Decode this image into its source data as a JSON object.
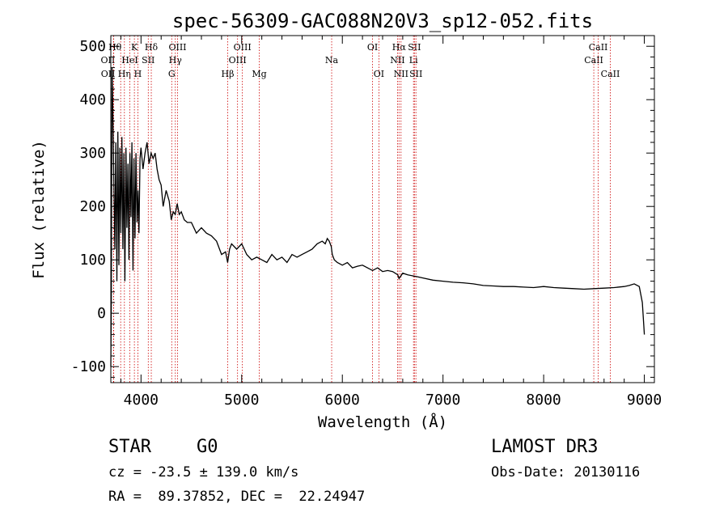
{
  "chart_data": {
    "type": "line",
    "title": "spec-56309-GAC088N20V3_sp12-052.fits",
    "xlabel": "Wavelength (Å)",
    "ylabel": "Flux (relative)",
    "xlim": [
      3700,
      9100
    ],
    "ylim": [
      -130,
      520
    ],
    "xticks": [
      4000,
      5000,
      6000,
      7000,
      8000,
      9000
    ],
    "yticks": [
      -100,
      0,
      100,
      200,
      300,
      400,
      500
    ],
    "series": [
      {
        "name": "flux",
        "x": [
          3700,
          3705,
          3712,
          3720,
          3730,
          3740,
          3750,
          3760,
          3770,
          3780,
          3790,
          3800,
          3810,
          3820,
          3830,
          3840,
          3850,
          3860,
          3870,
          3880,
          3890,
          3900,
          3910,
          3920,
          3930,
          3940,
          3950,
          3960,
          3970,
          3980,
          3990,
          4000,
          4020,
          4040,
          4060,
          4080,
          4100,
          4120,
          4140,
          4160,
          4180,
          4200,
          4220,
          4250,
          4280,
          4300,
          4320,
          4340,
          4360,
          4380,
          4400,
          4430,
          4460,
          4500,
          4550,
          4600,
          4650,
          4700,
          4750,
          4800,
          4840,
          4860,
          4880,
          4900,
          4950,
          5000,
          5050,
          5100,
          5150,
          5200,
          5250,
          5300,
          5350,
          5400,
          5450,
          5500,
          5550,
          5600,
          5650,
          5700,
          5750,
          5800,
          5830,
          5850,
          5870,
          5890,
          5900,
          5920,
          5950,
          6000,
          6050,
          6100,
          6150,
          6200,
          6250,
          6300,
          6350,
          6400,
          6450,
          6500,
          6550,
          6563,
          6600,
          6650,
          6700,
          6750,
          6800,
          6900,
          7000,
          7100,
          7200,
          7300,
          7400,
          7500,
          7600,
          7700,
          7800,
          7900,
          8000,
          8100,
          8200,
          8300,
          8400,
          8500,
          8600,
          8700,
          8800,
          8850,
          8900,
          8950,
          8980,
          9000
        ],
        "y": [
          -100,
          20,
          460,
          380,
          250,
          120,
          320,
          60,
          340,
          90,
          310,
          150,
          330,
          120,
          300,
          60,
          310,
          160,
          280,
          100,
          300,
          180,
          320,
          80,
          290,
          140,
          300,
          170,
          230,
          150,
          290,
          310,
          270,
          300,
          320,
          280,
          300,
          290,
          300,
          270,
          250,
          240,
          200,
          230,
          210,
          175,
          190,
          185,
          205,
          185,
          190,
          175,
          170,
          170,
          150,
          160,
          150,
          145,
          135,
          110,
          115,
          95,
          120,
          130,
          120,
          130,
          110,
          100,
          105,
          100,
          95,
          110,
          100,
          105,
          95,
          110,
          105,
          110,
          115,
          120,
          130,
          135,
          130,
          140,
          135,
          125,
          110,
          100,
          95,
          90,
          95,
          85,
          88,
          90,
          85,
          80,
          85,
          78,
          80,
          78,
          72,
          65,
          75,
          72,
          70,
          68,
          66,
          62,
          60,
          58,
          57,
          55,
          52,
          51,
          50,
          50,
          49,
          48,
          50,
          48,
          47,
          46,
          45,
          46,
          47,
          48,
          50,
          52,
          55,
          50,
          20,
          -40
        ]
      }
    ],
    "lines": [
      {
        "name": "OII",
        "wavelength": 3727,
        "row": 2,
        "side": "left"
      },
      {
        "name": "OII",
        "wavelength": 3729,
        "row": 3,
        "side": "left"
      },
      {
        "name": "Hθ",
        "wavelength": 3798,
        "row": 1,
        "side": "left"
      },
      {
        "name": "Hη",
        "wavelength": 3835,
        "row": 3,
        "side": "center"
      },
      {
        "name": "HeI",
        "wavelength": 3889,
        "row": 2,
        "side": "center"
      },
      {
        "name": "K",
        "wavelength": 3934,
        "row": 1,
        "side": "center"
      },
      {
        "name": "H",
        "wavelength": 3969,
        "row": 3,
        "side": "center"
      },
      {
        "name": "SII",
        "wavelength": 4072,
        "row": 2,
        "side": "center"
      },
      {
        "name": "Hδ",
        "wavelength": 4102,
        "row": 1,
        "side": "center"
      },
      {
        "name": "G",
        "wavelength": 4305,
        "row": 3,
        "side": "center"
      },
      {
        "name": "Hγ",
        "wavelength": 4341,
        "row": 2,
        "side": "center"
      },
      {
        "name": "OIII",
        "wavelength": 4363,
        "row": 1,
        "side": "center"
      },
      {
        "name": "Hβ",
        "wavelength": 4861,
        "row": 3,
        "side": "center"
      },
      {
        "name": "OIII",
        "wavelength": 4959,
        "row": 2,
        "side": "center"
      },
      {
        "name": "OIII",
        "wavelength": 5007,
        "row": 1,
        "side": "center"
      },
      {
        "name": "Mg",
        "wavelength": 5175,
        "row": 3,
        "side": "center"
      },
      {
        "name": "Na",
        "wavelength": 5894,
        "row": 2,
        "side": "center"
      },
      {
        "name": "OI",
        "wavelength": 6300,
        "row": 1,
        "side": "center"
      },
      {
        "name": "OI",
        "wavelength": 6363,
        "row": 3,
        "side": "center"
      },
      {
        "name": "NII",
        "wavelength": 6548,
        "row": 2,
        "side": "center"
      },
      {
        "name": "Hα",
        "wavelength": 6563,
        "row": 1,
        "side": "center"
      },
      {
        "name": "NII",
        "wavelength": 6583,
        "row": 3,
        "side": "center"
      },
      {
        "name": "Li",
        "wavelength": 6707,
        "row": 2,
        "side": "center"
      },
      {
        "name": "SII",
        "wavelength": 6716,
        "row": 1,
        "side": "center"
      },
      {
        "name": "SII",
        "wavelength": 6731,
        "row": 3,
        "side": "center"
      },
      {
        "name": "CaII",
        "wavelength": 8498,
        "row": 2,
        "side": "center"
      },
      {
        "name": "CaII",
        "wavelength": 8542,
        "row": 1,
        "side": "center"
      },
      {
        "name": "CaII",
        "wavelength": 8662,
        "row": 3,
        "side": "center"
      }
    ],
    "colors": {
      "spectrum": "#000000",
      "lines": "#cc0000",
      "axes": "#000000"
    }
  },
  "info": {
    "class": "STAR",
    "subclass": "G0",
    "survey": "LAMOST DR3",
    "cz": "cz = -23.5 ± 139.0 km/s",
    "obs_date": "Obs-Date: 20130116",
    "radec": "RA =  89.37852, DEC =  22.24947"
  }
}
